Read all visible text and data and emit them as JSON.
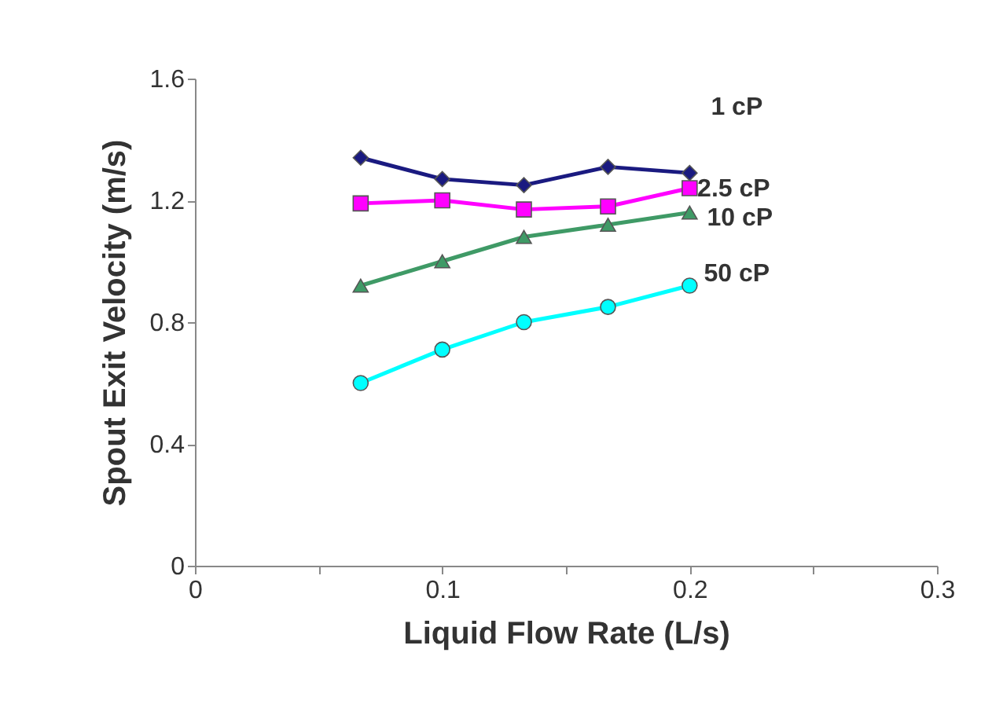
{
  "chart_data": {
    "type": "line",
    "xlabel": "Liquid Flow Rate (L/s)",
    "ylabel": "Spout Exit Velocity (m/s)",
    "x": [
      0.067,
      0.1,
      0.133,
      0.167,
      0.2
    ],
    "xlim": [
      0,
      0.3
    ],
    "xticks": [
      0,
      {
        "value": 0.05,
        "label": null
      },
      0.1,
      {
        "value": 0.15,
        "label": null
      },
      0.2,
      {
        "value": 0.25,
        "label": null
      },
      0.3
    ],
    "ylim": [
      0,
      1.6
    ],
    "yticks": [
      0,
      0.4,
      0.8,
      1.2,
      1.6
    ],
    "grid": false,
    "legend": false,
    "line_style": "solid",
    "series": [
      {
        "name": "1 cP",
        "color": "#1a1a80",
        "marker": "diamond",
        "values": [
          1.34,
          1.27,
          1.25,
          1.31,
          1.29
        ]
      },
      {
        "name": "2.5 cP",
        "color": "#ff00ff",
        "marker": "square",
        "values": [
          1.19,
          1.2,
          1.17,
          1.18,
          1.24
        ]
      },
      {
        "name": "10 cP",
        "color": "#3f9a66",
        "marker": "triangle",
        "values": [
          0.92,
          1.0,
          1.08,
          1.12,
          1.16
        ]
      },
      {
        "name": "50 cP",
        "color": "#00ffff",
        "marker": "circle",
        "values": [
          0.6,
          0.71,
          0.8,
          0.85,
          0.92
        ]
      }
    ]
  }
}
